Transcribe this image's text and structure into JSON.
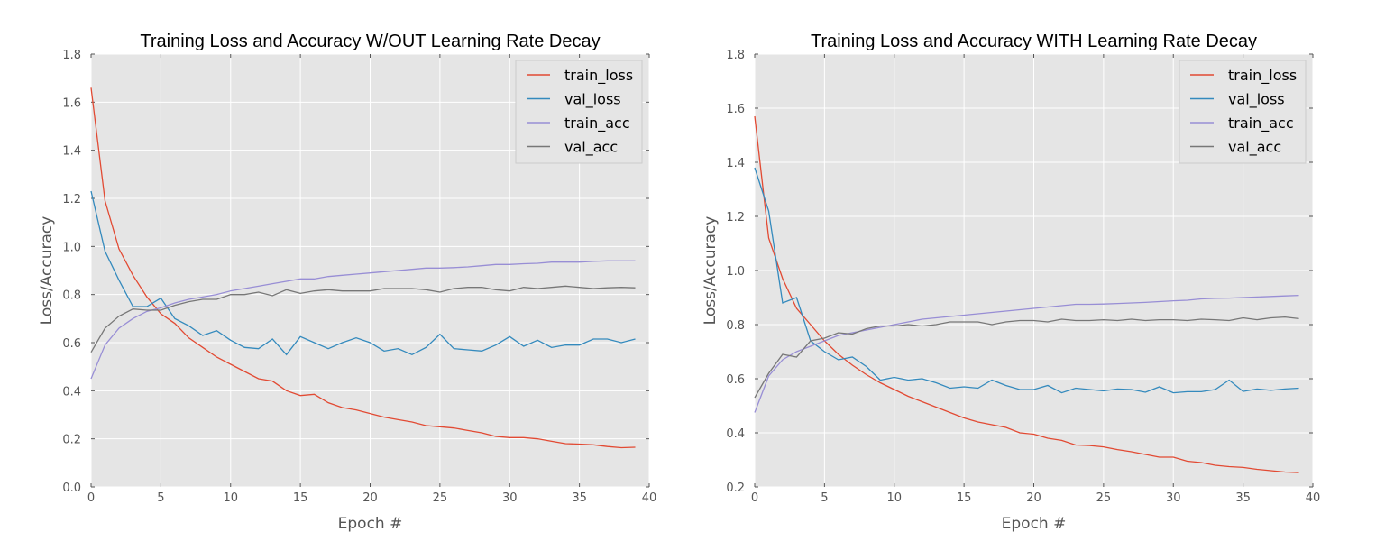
{
  "chart_data": [
    {
      "type": "line",
      "title": "Training Loss and Accuracy W/OUT Learning Rate Decay",
      "xlabel": "Epoch #",
      "ylabel": "Loss/Accuracy",
      "xlim": [
        0,
        40
      ],
      "ylim": [
        0,
        1.8
      ],
      "xticks": [
        0,
        5,
        10,
        15,
        20,
        25,
        30,
        35,
        40
      ],
      "yticks": [
        0.0,
        0.2,
        0.4,
        0.6,
        0.8,
        1.0,
        1.2,
        1.4,
        1.6,
        1.8
      ],
      "xtick_labels": [
        "0",
        "5",
        "10",
        "15",
        "20",
        "25",
        "30",
        "35",
        "40"
      ],
      "ytick_labels": [
        "0.0",
        "0.2",
        "0.4",
        "0.6",
        "0.8",
        "1.0",
        "1.2",
        "1.4",
        "1.6",
        "1.8"
      ],
      "grid": true,
      "legend": "top-right",
      "x": [
        0,
        1,
        2,
        3,
        4,
        5,
        6,
        7,
        8,
        9,
        10,
        11,
        12,
        13,
        14,
        15,
        16,
        17,
        18,
        19,
        20,
        21,
        22,
        23,
        24,
        25,
        26,
        27,
        28,
        29,
        30,
        31,
        32,
        33,
        34,
        35,
        36,
        37,
        38,
        39
      ],
      "series": [
        {
          "name": "train_loss",
          "color": "#e24a33",
          "values": [
            1.66,
            1.19,
            0.99,
            0.88,
            0.79,
            0.72,
            0.68,
            0.62,
            0.58,
            0.54,
            0.51,
            0.48,
            0.45,
            0.44,
            0.4,
            0.38,
            0.385,
            0.35,
            0.33,
            0.32,
            0.305,
            0.29,
            0.28,
            0.27,
            0.255,
            0.25,
            0.245,
            0.235,
            0.225,
            0.21,
            0.205,
            0.205,
            0.2,
            0.19,
            0.18,
            0.178,
            0.175,
            0.168,
            0.163,
            0.165
          ]
        },
        {
          "name": "val_loss",
          "color": "#348abd",
          "values": [
            1.23,
            0.98,
            0.86,
            0.75,
            0.75,
            0.785,
            0.7,
            0.67,
            0.63,
            0.65,
            0.61,
            0.58,
            0.575,
            0.615,
            0.55,
            0.625,
            0.6,
            0.575,
            0.6,
            0.62,
            0.6,
            0.565,
            0.575,
            0.55,
            0.58,
            0.635,
            0.575,
            0.57,
            0.565,
            0.59,
            0.625,
            0.585,
            0.61,
            0.58,
            0.59,
            0.59,
            0.615,
            0.615,
            0.6,
            0.615
          ]
        },
        {
          "name": "train_acc",
          "color": "#988ed5",
          "values": [
            0.45,
            0.59,
            0.66,
            0.7,
            0.73,
            0.745,
            0.765,
            0.78,
            0.79,
            0.8,
            0.815,
            0.825,
            0.835,
            0.845,
            0.855,
            0.865,
            0.865,
            0.875,
            0.88,
            0.885,
            0.89,
            0.895,
            0.9,
            0.905,
            0.91,
            0.91,
            0.912,
            0.915,
            0.92,
            0.925,
            0.925,
            0.928,
            0.93,
            0.935,
            0.935,
            0.935,
            0.938,
            0.94,
            0.94,
            0.94
          ]
        },
        {
          "name": "val_acc",
          "color": "#777777",
          "values": [
            0.56,
            0.66,
            0.71,
            0.74,
            0.735,
            0.735,
            0.755,
            0.77,
            0.78,
            0.78,
            0.8,
            0.8,
            0.81,
            0.795,
            0.82,
            0.805,
            0.815,
            0.82,
            0.815,
            0.815,
            0.815,
            0.825,
            0.825,
            0.825,
            0.82,
            0.81,
            0.825,
            0.83,
            0.83,
            0.82,
            0.815,
            0.83,
            0.825,
            0.83,
            0.835,
            0.83,
            0.825,
            0.828,
            0.83,
            0.828
          ]
        }
      ]
    },
    {
      "type": "line",
      "title": "Training Loss and Accuracy WITH Learning Rate Decay",
      "xlabel": "Epoch #",
      "ylabel": "Loss/Accuracy",
      "xlim": [
        0,
        40
      ],
      "ylim": [
        0.2,
        1.8
      ],
      "xticks": [
        0,
        5,
        10,
        15,
        20,
        25,
        30,
        35,
        40
      ],
      "yticks": [
        0.2,
        0.4,
        0.6,
        0.8,
        1.0,
        1.2,
        1.4,
        1.6,
        1.8
      ],
      "xtick_labels": [
        "0",
        "5",
        "10",
        "15",
        "20",
        "25",
        "30",
        "35",
        "40"
      ],
      "ytick_labels": [
        "0.2",
        "0.4",
        "0.6",
        "0.8",
        "1.0",
        "1.2",
        "1.4",
        "1.6",
        "1.8"
      ],
      "grid": true,
      "legend": "top-right",
      "x": [
        0,
        1,
        2,
        3,
        4,
        5,
        6,
        7,
        8,
        9,
        10,
        11,
        12,
        13,
        14,
        15,
        16,
        17,
        18,
        19,
        20,
        21,
        22,
        23,
        24,
        25,
        26,
        27,
        28,
        29,
        30,
        31,
        32,
        33,
        34,
        35,
        36,
        37,
        38,
        39
      ],
      "series": [
        {
          "name": "train_loss",
          "color": "#e24a33",
          "values": [
            1.57,
            1.12,
            0.97,
            0.86,
            0.8,
            0.74,
            0.69,
            0.65,
            0.615,
            0.585,
            0.56,
            0.535,
            0.515,
            0.495,
            0.475,
            0.455,
            0.44,
            0.43,
            0.42,
            0.4,
            0.395,
            0.38,
            0.372,
            0.355,
            0.353,
            0.348,
            0.338,
            0.33,
            0.32,
            0.31,
            0.31,
            0.295,
            0.29,
            0.28,
            0.275,
            0.272,
            0.265,
            0.26,
            0.255,
            0.253
          ]
        },
        {
          "name": "val_loss",
          "color": "#348abd",
          "values": [
            1.38,
            1.22,
            0.88,
            0.9,
            0.74,
            0.7,
            0.67,
            0.68,
            0.645,
            0.595,
            0.605,
            0.595,
            0.6,
            0.585,
            0.565,
            0.57,
            0.565,
            0.595,
            0.575,
            0.56,
            0.56,
            0.575,
            0.548,
            0.565,
            0.56,
            0.555,
            0.562,
            0.56,
            0.55,
            0.57,
            0.548,
            0.552,
            0.552,
            0.56,
            0.595,
            0.553,
            0.562,
            0.557,
            0.562,
            0.565
          ]
        },
        {
          "name": "train_acc",
          "color": "#988ed5",
          "values": [
            0.475,
            0.61,
            0.67,
            0.7,
            0.72,
            0.74,
            0.76,
            0.77,
            0.78,
            0.79,
            0.8,
            0.81,
            0.82,
            0.825,
            0.83,
            0.835,
            0.84,
            0.845,
            0.85,
            0.855,
            0.86,
            0.865,
            0.87,
            0.875,
            0.875,
            0.876,
            0.878,
            0.88,
            0.882,
            0.885,
            0.888,
            0.89,
            0.895,
            0.897,
            0.898,
            0.9,
            0.902,
            0.904,
            0.906,
            0.908
          ]
        },
        {
          "name": "val_acc",
          "color": "#777777",
          "values": [
            0.53,
            0.62,
            0.69,
            0.68,
            0.74,
            0.75,
            0.77,
            0.765,
            0.785,
            0.795,
            0.795,
            0.8,
            0.795,
            0.8,
            0.81,
            0.81,
            0.81,
            0.8,
            0.81,
            0.815,
            0.815,
            0.81,
            0.82,
            0.815,
            0.815,
            0.818,
            0.815,
            0.82,
            0.815,
            0.818,
            0.818,
            0.815,
            0.82,
            0.818,
            0.815,
            0.825,
            0.818,
            0.825,
            0.828,
            0.822
          ]
        }
      ]
    }
  ]
}
